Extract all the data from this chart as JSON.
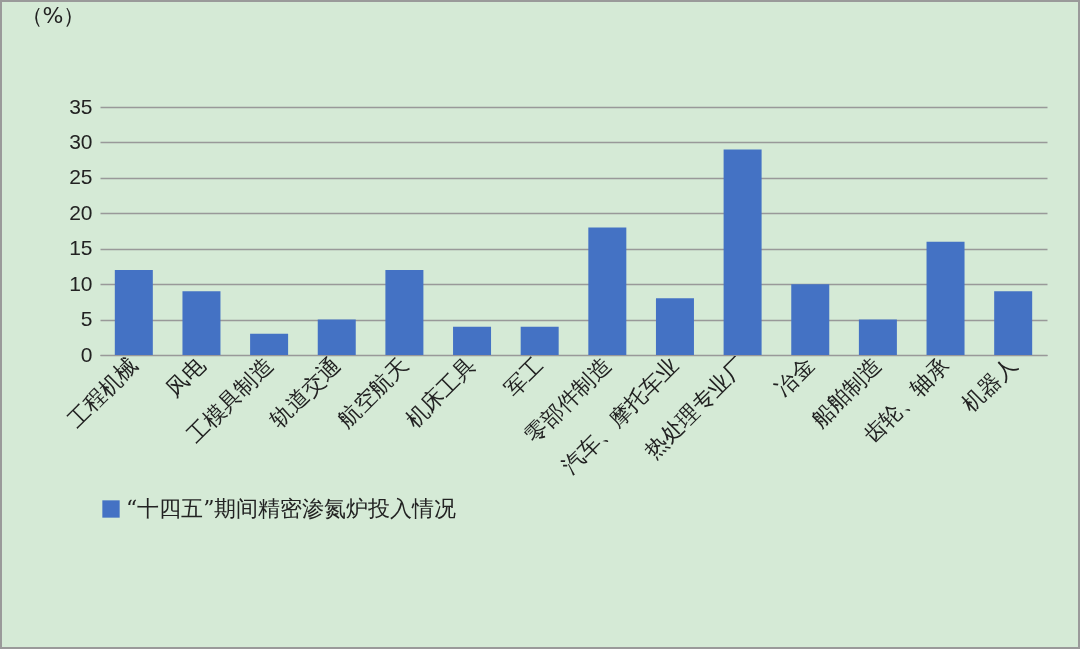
{
  "chart_data": {
    "type": "bar",
    "ylabel": "（%）",
    "categories": [
      "工程机械",
      "风电",
      "工模具制造",
      "轨道交通",
      "航空航天",
      "机床工具",
      "军工",
      "零部件制造",
      "汽车、摩托车业",
      "热处理专业厂",
      "冶金",
      "船舶制造",
      "齿轮、轴承",
      "机器人"
    ],
    "series": [
      {
        "name": "“十四五”期间精密渗氮炉投入情况",
        "color": "#4472c4",
        "values": [
          12,
          9,
          3,
          5,
          12,
          4,
          4,
          18,
          8,
          29,
          10,
          5,
          16,
          9
        ]
      }
    ],
    "ylim": [
      0,
      35
    ],
    "yticks": [
      0,
      5,
      10,
      15,
      20,
      25,
      30,
      35
    ],
    "grid": "y",
    "legend": "bottom"
  }
}
